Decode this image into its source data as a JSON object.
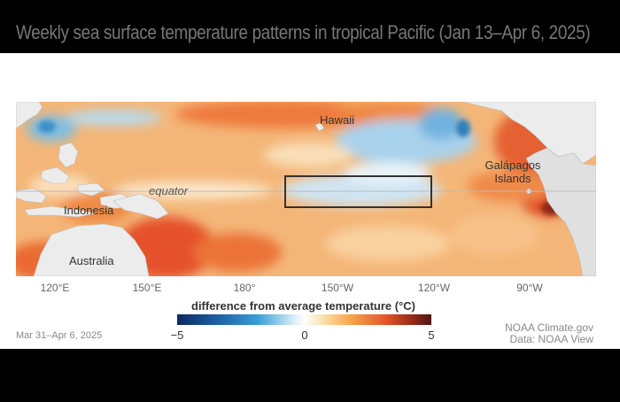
{
  "title": "Weekly sea surface temperature patterns in tropical Pacific (Jan 13–Apr 6, 2025)",
  "map": {
    "labels": {
      "hawaii": "Hawaii",
      "galapagos": "Galápagos Islands",
      "equator": "equator",
      "indonesia": "Indonesia",
      "australia": "Australia"
    },
    "longitude_ticks": [
      "120°E",
      "150°E",
      "180°",
      "150°W",
      "120°W",
      "90°W"
    ]
  },
  "legend": {
    "title": "difference from average temperature (°C)",
    "min_label": "−5",
    "mid_label": "0",
    "max_label": "5",
    "scale_min": -5,
    "scale_max": 5
  },
  "date_range": "Mar 31–Apr 6, 2025",
  "credits": {
    "line1": "NOAA Climate.gov",
    "line2": "Data: NOAA View"
  },
  "colors": {
    "warm_anomaly": "#e8552a",
    "cool_anomaly": "#3aa0d6",
    "land": "#ececec",
    "nino_box_outline": "#333333"
  }
}
